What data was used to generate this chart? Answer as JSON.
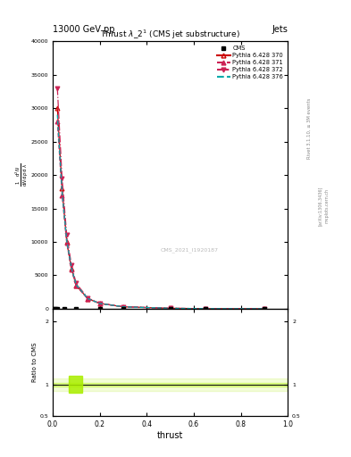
{
  "title_top_left": "13000 GeV pp",
  "title_top_right": "Jets",
  "plot_title": "Thrust $\\lambda\\_2^1$ (CMS jet substructure)",
  "watermark": "CMS_2021_I1920187",
  "xlabel": "thrust",
  "xlim": [
    0,
    1
  ],
  "ylim_main": [
    0,
    40000
  ],
  "ylim_ratio": [
    0.5,
    2.2
  ],
  "yticks_main": [
    0,
    5000,
    10000,
    15000,
    20000,
    25000,
    30000,
    35000,
    40000
  ],
  "ytick_labels_main": [
    "0",
    "5000",
    "10000",
    "15000",
    "20000",
    "25000",
    "30000",
    "35000",
    "40000"
  ],
  "yticks_ratio": [
    0.5,
    1.0,
    2.0
  ],
  "ytick_labels_ratio": [
    "0.5",
    "1",
    "2"
  ],
  "x_pts": [
    0.02,
    0.04,
    0.06,
    0.08,
    0.1,
    0.15,
    0.2,
    0.3,
    0.5,
    0.65,
    0.9
  ],
  "py370_y": [
    30000,
    18000,
    10000,
    6000,
    3500,
    1500,
    800,
    300,
    80,
    20,
    5
  ],
  "py371_y": [
    28000,
    17000,
    9800,
    5800,
    3400,
    1480,
    790,
    295,
    79,
    19,
    5
  ],
  "py372_y": [
    33000,
    19500,
    11000,
    6500,
    3800,
    1600,
    850,
    310,
    82,
    21,
    6
  ],
  "py376_y": [
    29000,
    17500,
    10200,
    6100,
    3600,
    1520,
    800,
    300,
    80,
    20,
    5
  ],
  "cms_x": [
    0.005,
    0.01,
    0.02,
    0.05,
    0.1,
    0.2,
    0.3,
    0.5,
    0.65,
    0.9
  ],
  "cms_y": [
    0,
    0,
    0,
    0,
    0,
    0,
    0,
    0,
    0,
    0
  ],
  "color_py370": "#cc0000",
  "color_py371": "#cc2255",
  "color_py372": "#cc2255",
  "color_py376": "#00aaaa",
  "color_cms": "#000000",
  "ratio_band_color": "#aaee00",
  "ratio_box_color": "#aaee00",
  "ylabel_ratio": "Ratio to CMS",
  "right_text1": "Rivet 3.1.10, ≥ 3M events",
  "right_text2": "[arXiv:1306.3436]",
  "right_text3": "mcplots.cern.ch"
}
